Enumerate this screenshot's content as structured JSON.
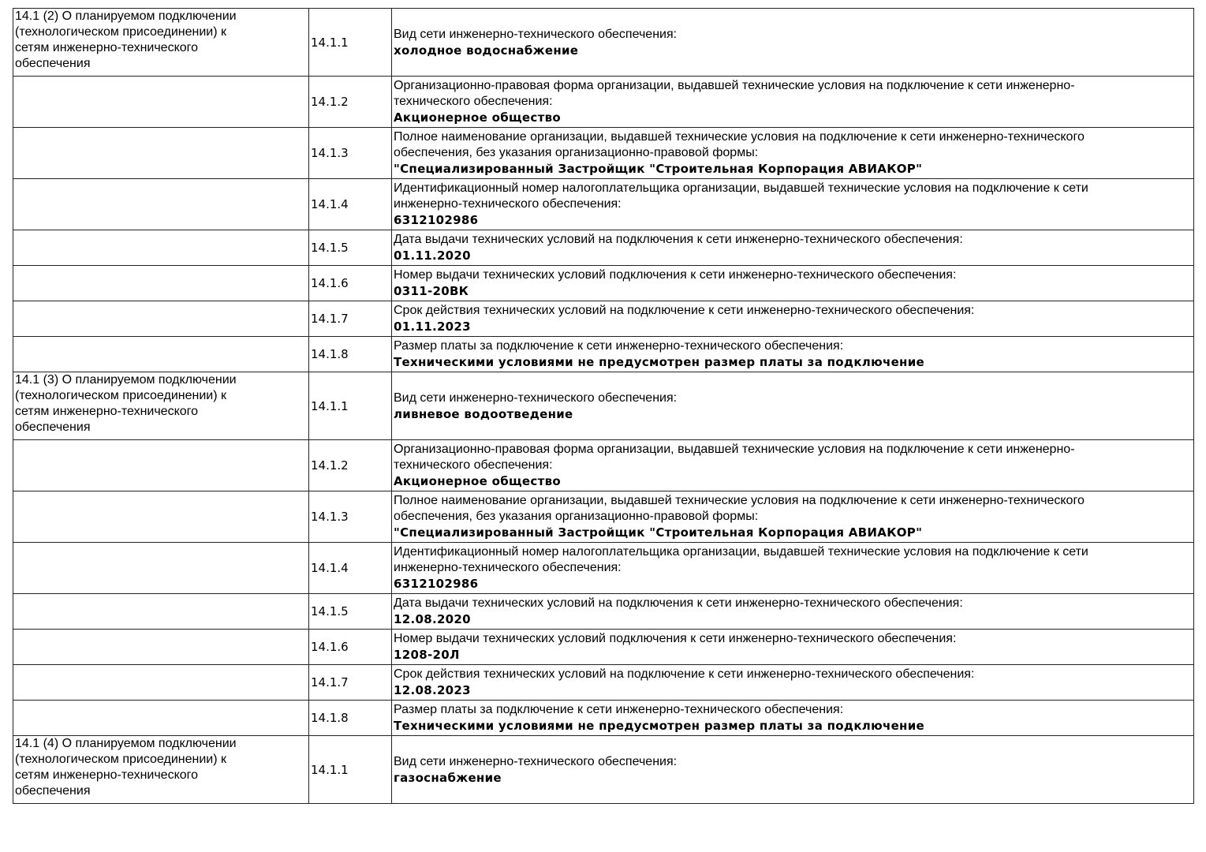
{
  "groups": [
    {
      "title": [
        "14.1 (2) О планируемом подключении",
        "(технологическом присоединении) к",
        "сетям инженерно-технического",
        "обеспечения"
      ],
      "rows": [
        {
          "num": "14.1.1",
          "desc": [
            "Вид сети инженерно-технического обеспечения:"
          ],
          "value": "холодное водоснабжение"
        },
        {
          "num": "14.1.2",
          "desc": [
            "Организационно-правовая форма организации, выдавшей технические условия на подключение к сети инженерно-",
            "технического обеспечения:"
          ],
          "value": "Акционерное общество"
        },
        {
          "num": "14.1.3",
          "desc": [
            "Полное наименование организации, выдавшей технические условия на подключение к сети инженерно-технического",
            "обеспечения, без указания организационно-правовой формы:"
          ],
          "value": "\"Специализированный Застройщик \"Строительная Корпорация АВИАКОР\""
        },
        {
          "num": "14.1.4",
          "desc": [
            "Идентификационный номер налогоплательщика организации, выдавшей технические условия на подключение к сети",
            "инженерно-технического обеспечения:"
          ],
          "value": "6312102986"
        },
        {
          "num": "14.1.5",
          "desc": [
            "Дата выдачи технических условий на подключения к сети инженерно-технического обеспечения:"
          ],
          "value": "01.11.2020"
        },
        {
          "num": "14.1.6",
          "desc": [
            "Номер выдачи технических условий подключения к сети инженерно-технического обеспечения:"
          ],
          "value": "0311-20ВК"
        },
        {
          "num": "14.1.7",
          "desc": [
            "Срок действия технических условий на подключение к сети инженерно-технического обеспечения:"
          ],
          "value": "01.11.2023"
        },
        {
          "num": "14.1.8",
          "desc": [
            "Размер платы за подключение к сети инженерно-технического обеспечения:"
          ],
          "value": "Техническими условиями не предусмотрен размер платы за подключение"
        }
      ]
    },
    {
      "title": [
        "14.1 (3) О планируемом подключении",
        "(технологическом присоединении) к",
        "сетям инженерно-технического",
        "обеспечения"
      ],
      "rows": [
        {
          "num": "14.1.1",
          "desc": [
            "Вид сети инженерно-технического обеспечения:"
          ],
          "value": "ливневое водоотведение"
        },
        {
          "num": "14.1.2",
          "desc": [
            "Организационно-правовая форма организации, выдавшей технические условия на подключение к сети инженерно-",
            "технического обеспечения:"
          ],
          "value": "Акционерное общество"
        },
        {
          "num": "14.1.3",
          "desc": [
            "Полное наименование организации, выдавшей технические условия на подключение к сети инженерно-технического",
            "обеспечения, без указания организационно-правовой формы:"
          ],
          "value": "\"Специализированный Застройщик \"Строительная Корпорация АВИАКОР\""
        },
        {
          "num": "14.1.4",
          "desc": [
            "Идентификационный номер налогоплательщика организации, выдавшей технические условия на подключение к сети",
            "инженерно-технического обеспечения:"
          ],
          "value": "6312102986"
        },
        {
          "num": "14.1.5",
          "desc": [
            "Дата выдачи технических условий на подключения к сети инженерно-технического обеспечения:"
          ],
          "value": "12.08.2020"
        },
        {
          "num": "14.1.6",
          "desc": [
            "Номер выдачи технических условий подключения к сети инженерно-технического обеспечения:"
          ],
          "value": "1208-20Л"
        },
        {
          "num": "14.1.7",
          "desc": [
            "Срок действия технических условий на подключение к сети инженерно-технического обеспечения:"
          ],
          "value": "12.08.2023"
        },
        {
          "num": "14.1.8",
          "desc": [
            "Размер платы за подключение к сети инженерно-технического обеспечения:"
          ],
          "value": "Техническими условиями не предусмотрен размер платы за подключение"
        }
      ]
    },
    {
      "title": [
        "14.1 (4) О планируемом подключении",
        "(технологическом присоединении) к",
        "сетям инженерно-технического",
        "обеспечения"
      ],
      "rows": [
        {
          "num": "14.1.1",
          "desc": [
            "Вид сети инженерно-технического обеспечения:"
          ],
          "value": "газоснабжение"
        }
      ]
    }
  ]
}
